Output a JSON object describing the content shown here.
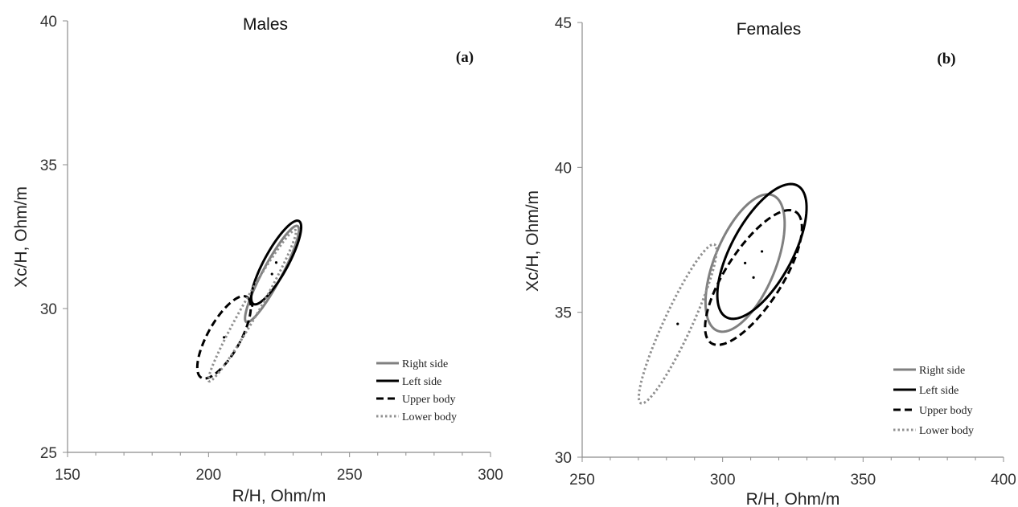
{
  "chart_data": [
    {
      "type": "scatter",
      "title": "Males",
      "panel_label": "(a)",
      "xlabel": "R/H, Ohm/m",
      "ylabel": "Xc/H, Ohm/m",
      "xlim": [
        150,
        300
      ],
      "ylim": [
        25,
        40
      ],
      "xticks": [
        150,
        200,
        250,
        300
      ],
      "yticks": [
        25,
        30,
        35,
        40
      ],
      "minor_x_step": 10,
      "legend_position": "bottom-right",
      "series": [
        {
          "name": "Right side",
          "style": "solid",
          "color": "#808080",
          "center": [
            222.5,
            31.2
          ],
          "vertices": [
            [
              231.5,
              32.8
            ],
            [
              212.5,
              29.6
            ],
            [
              221.5,
              31.7
            ],
            [
              223.5,
              30.7
            ]
          ]
        },
        {
          "name": "Left side",
          "style": "solid",
          "color": "#000000",
          "center": [
            224,
            31.6
          ],
          "vertices": [
            [
              232.5,
              33.0
            ],
            [
              215.5,
              30.2
            ],
            [
              221.5,
              32.0
            ],
            [
              226.5,
              31.2
            ]
          ]
        },
        {
          "name": "Upper body",
          "style": "dashed",
          "color": "#000000",
          "center": [
            205.5,
            29.0
          ],
          "vertices": [
            [
              214.5,
              30.3
            ],
            [
              196.5,
              27.7
            ],
            [
              202.5,
              29.6
            ],
            [
              208.5,
              28.4
            ]
          ]
        },
        {
          "name": "Lower body",
          "style": "dotted",
          "color": "#909090",
          "center": [
            215.5,
            30.1
          ],
          "vertices": [
            [
              231,
              32.7
            ],
            [
              200,
              27.5
            ],
            [
              214.5,
              30.5
            ],
            [
              216.5,
              29.7
            ]
          ]
        }
      ]
    },
    {
      "type": "scatter",
      "title": "Females",
      "panel_label": "(b)",
      "xlabel": "R/H, Ohm/m",
      "ylabel": "Xc/H, Ohm/m",
      "xlim": [
        250,
        400
      ],
      "ylim": [
        30,
        45
      ],
      "xticks": [
        250,
        300,
        350,
        400
      ],
      "yticks": [
        30,
        35,
        40,
        45
      ],
      "minor_x_step": 10,
      "legend_position": "bottom-right",
      "series": [
        {
          "name": "Right side",
          "style": "solid",
          "color": "#808080",
          "center": [
            308,
            36.7
          ],
          "vertices": [
            [
              320.5,
              38.8
            ],
            [
              295.5,
              34.6
            ],
            [
              301.5,
              37.8
            ],
            [
              314.5,
              35.6
            ]
          ]
        },
        {
          "name": "Left side",
          "style": "solid",
          "color": "#000000",
          "center": [
            314,
            37.1
          ],
          "vertices": [
            [
              328.5,
              39.2
            ],
            [
              299.5,
              35.0
            ],
            [
              307.5,
              38.1
            ],
            [
              320.5,
              36.1
            ]
          ]
        },
        {
          "name": "Upper body",
          "style": "dashed",
          "color": "#000000",
          "center": [
            311,
            36.2
          ],
          "vertices": [
            [
              327.5,
              38.3
            ],
            [
              294.5,
              34.1
            ],
            [
              306,
              37.2
            ],
            [
              316,
              35.2
            ]
          ]
        },
        {
          "name": "Lower body",
          "style": "dotted",
          "color": "#909090",
          "center": [
            284,
            34.6
          ],
          "vertices": [
            [
              297.5,
              37.3
            ],
            [
              270.5,
              31.9
            ],
            [
              281,
              35.1
            ],
            [
              287,
              34.1
            ]
          ]
        }
      ]
    }
  ]
}
